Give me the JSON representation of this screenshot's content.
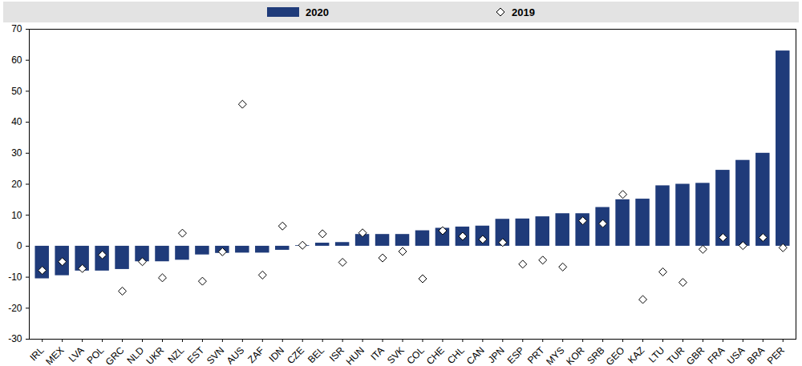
{
  "chart_data": {
    "type": "bar",
    "categories": [
      "IRL",
      "MEX",
      "LVA",
      "POL",
      "GRC",
      "NLD",
      "UKR",
      "NZL",
      "EST",
      "SVN",
      "AUS",
      "ZAF",
      "IDN",
      "CZE",
      "BEL",
      "ISR",
      "HUN",
      "ITA",
      "SVK",
      "COL",
      "CHE",
      "CHL",
      "CAN",
      "JPN",
      "ESP",
      "PRT",
      "MYS",
      "KOR",
      "SRB",
      "GEO",
      "KAZ",
      "LTU",
      "TUR",
      "GBR",
      "FRA",
      "USA",
      "BRA",
      "PER"
    ],
    "series": [
      {
        "name": "2020",
        "type": "bar",
        "color": "#1f3b7a",
        "values": [
          -10.5,
          -9.5,
          -8,
          -8,
          -7.5,
          -5,
          -5,
          -4.5,
          -2.8,
          -2.3,
          -2.2,
          -2.2,
          -1.3,
          0.2,
          1,
          1.2,
          3.8,
          3.8,
          3.8,
          5,
          5.8,
          6.2,
          6.5,
          8.7,
          8.8,
          9.5,
          10.5,
          10.5,
          12.5,
          15,
          15.2,
          19.5,
          20,
          20.3,
          24.5,
          27.7,
          30,
          63
        ]
      },
      {
        "name": "2019",
        "type": "scatter",
        "marker": "diamond",
        "color": "#ffffff",
        "values": [
          -7.8,
          -5,
          -7.2,
          -2.8,
          -14.5,
          -5,
          -10.2,
          4.2,
          -11.3,
          -1.8,
          45.8,
          -9.3,
          6.5,
          0.3,
          4,
          -5.2,
          4.3,
          -3.8,
          -1.7,
          -10.5,
          5,
          3.2,
          2.2,
          1.2,
          -5.8,
          -4.5,
          -6.7,
          8.2,
          7.3,
          16.7,
          -17.2,
          -8.3,
          -11.7,
          -1,
          2.8,
          0.2,
          2.8,
          -0.5
        ]
      }
    ],
    "ylim": [
      -30,
      70
    ],
    "yticks": [
      -30,
      -20,
      -10,
      0,
      10,
      20,
      30,
      40,
      50,
      60,
      70
    ],
    "grid": false,
    "legend": "top"
  }
}
